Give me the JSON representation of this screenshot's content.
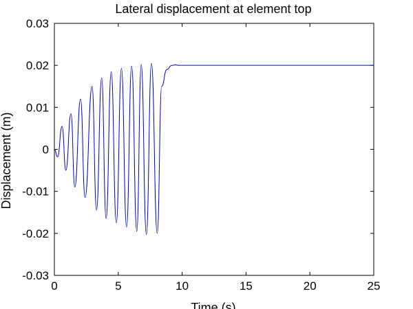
{
  "chart_data": {
    "type": "line",
    "title": "Lateral displacement at element top",
    "xlabel": "Time (s)",
    "ylabel": "Displacement (m)",
    "xlim": [
      0,
      25
    ],
    "ylim": [
      -0.03,
      0.03
    ],
    "xticks": [
      0,
      5,
      10,
      15,
      20,
      25
    ],
    "xtick_labels": [
      "0",
      "5",
      "10",
      "15",
      "20",
      "25"
    ],
    "yticks": [
      0.03,
      0.02,
      0.01,
      0,
      -0.01,
      -0.02,
      -0.03
    ],
    "ytick_labels": [
      "0.03",
      "0.02",
      "0.01",
      "0",
      "-0.01",
      "-0.02",
      "-0.03"
    ],
    "grid": false,
    "line_color": "#0000cc",
    "series": [
      {
        "x": [
          0,
          0.25,
          0.6,
          0.9,
          1.3,
          1.6,
          2.05,
          2.4,
          2.95,
          3.3,
          3.7,
          4.05,
          4.45,
          4.85,
          5.25,
          5.65,
          6.05,
          6.45,
          6.8,
          7.2,
          7.6,
          8.05,
          8.4,
          8.8,
          9.2,
          9.5,
          9.7,
          10.0,
          10.3,
          11,
          13,
          16,
          20,
          25
        ],
        "y": [
          0,
          -0.0018,
          0.0055,
          -0.005,
          0.0085,
          -0.009,
          0.012,
          -0.0115,
          0.015,
          -0.0145,
          0.017,
          -0.0165,
          0.0185,
          -0.0175,
          0.0193,
          -0.0185,
          0.0198,
          -0.0195,
          0.0202,
          -0.0203,
          0.0205,
          -0.02,
          0.015,
          0.019,
          0.02,
          0.0201,
          0.02,
          0.02,
          0.02,
          0.02,
          0.02,
          0.02,
          0.02,
          0.02
        ]
      }
    ]
  }
}
